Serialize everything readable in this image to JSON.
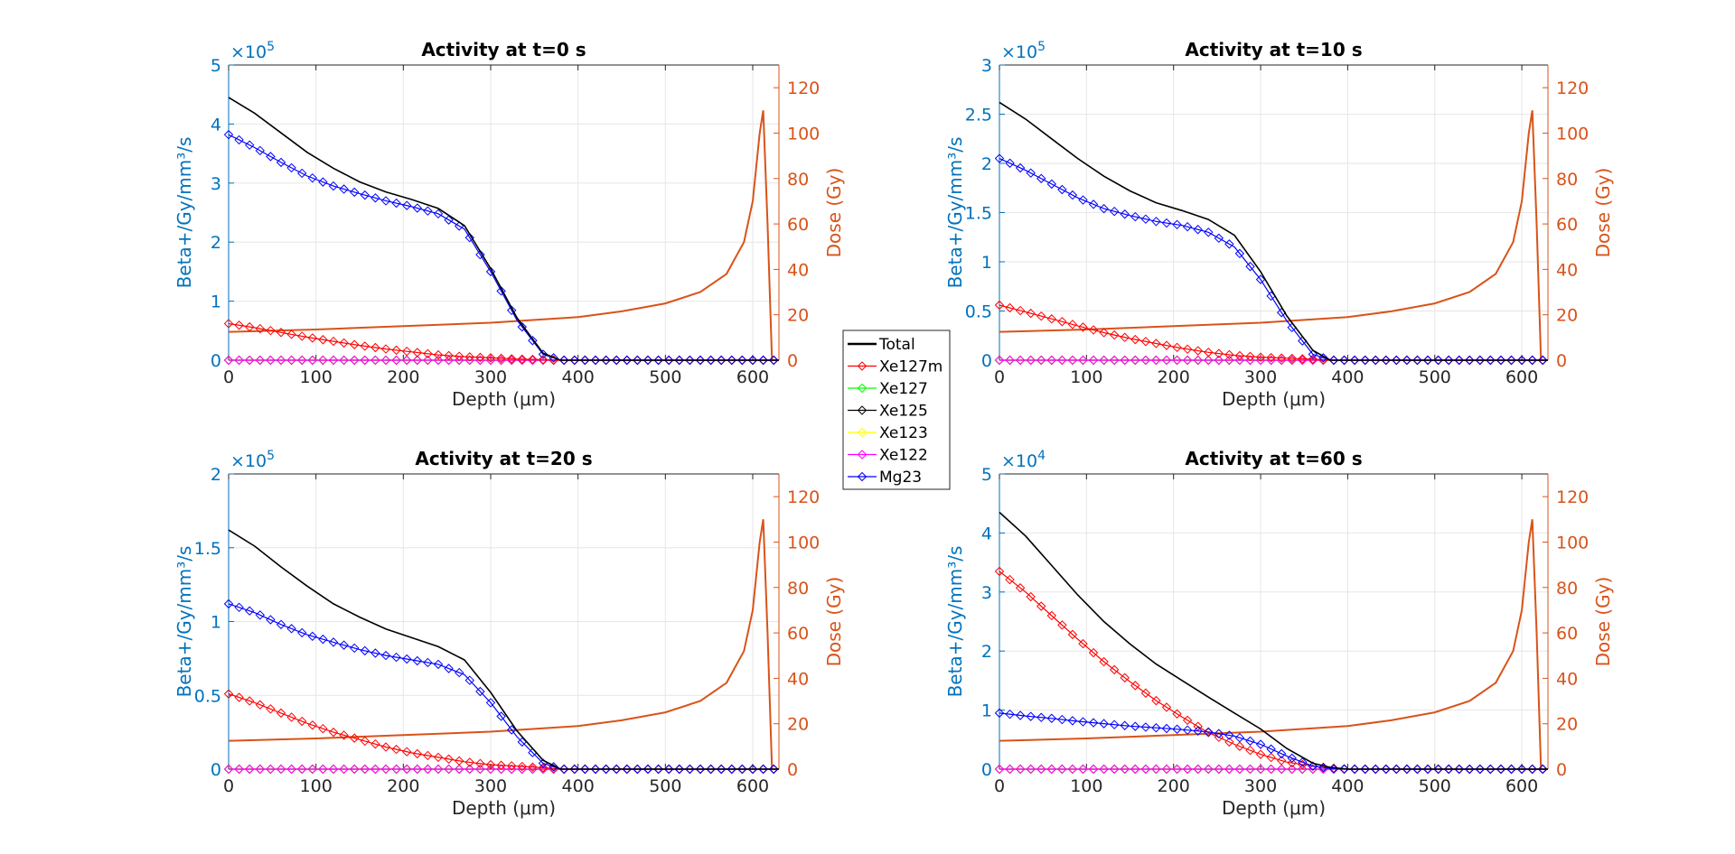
{
  "legend": {
    "entries": [
      {
        "label": "Total",
        "color": "#000000",
        "marker": "none"
      },
      {
        "label": "Xe127m",
        "color": "#ff0000",
        "marker": "diamond"
      },
      {
        "label": "Xe127",
        "color": "#00ff00",
        "marker": "diamond"
      },
      {
        "label": "Xe125",
        "color": "#000000",
        "marker": "diamond"
      },
      {
        "label": "Xe123",
        "color": "#ffff00",
        "marker": "diamond"
      },
      {
        "label": "Xe122",
        "color": "#ff00ff",
        "marker": "diamond"
      },
      {
        "label": "Mg23",
        "color": "#0000ff",
        "marker": "diamond"
      }
    ]
  },
  "colors": {
    "left_axis": "#0072bd",
    "right_axis": "#d95319",
    "grid": "#e6e6e6"
  },
  "chart_data": [
    {
      "type": "line",
      "title": "Activity at t=0 s",
      "xlabel": "Depth (μm)",
      "ylabel_left": "Beta+/Gy/mm³/s",
      "ylabel_right": "Dose (Gy)",
      "xlim": [
        0,
        630
      ],
      "xticks": [
        0,
        100,
        200,
        300,
        400,
        500,
        600
      ],
      "ylim_left": [
        0,
        5
      ],
      "yticks_left": [
        "0",
        "1",
        "2",
        "3",
        "4",
        "5"
      ],
      "ytick_values_left": [
        0,
        1,
        2,
        3,
        4,
        5
      ],
      "multiplier": "×10",
      "multiplier_exp": "5",
      "ylim_right": [
        0,
        130
      ],
      "yticks_right": [
        0,
        20,
        40,
        60,
        80,
        100,
        120
      ],
      "grid": true,
      "x": [
        0,
        30,
        60,
        90,
        120,
        150,
        180,
        210,
        240,
        270,
        300,
        330,
        360,
        380,
        400,
        450,
        500,
        550,
        600,
        630
      ],
      "series": [
        {
          "name": "Total",
          "values": [
            4.45,
            4.18,
            3.85,
            3.52,
            3.25,
            3.02,
            2.85,
            2.72,
            2.57,
            2.28,
            1.55,
            0.72,
            0.12,
            0,
            0,
            0,
            0,
            0,
            0,
            0
          ]
        },
        {
          "name": "Xe127m",
          "values": [
            0.62,
            0.55,
            0.47,
            0.39,
            0.32,
            0.25,
            0.19,
            0.14,
            0.09,
            0.06,
            0.04,
            0.02,
            0.01,
            0,
            0,
            0,
            0,
            0,
            0,
            0
          ]
        },
        {
          "name": "Xe127",
          "values": [
            0,
            0,
            0,
            0,
            0,
            0,
            0,
            0,
            0,
            0,
            0,
            0,
            0,
            0,
            0,
            0,
            0,
            0,
            0,
            0
          ]
        },
        {
          "name": "Xe125",
          "values": [
            0,
            0,
            0,
            0,
            0,
            0,
            0,
            0,
            0,
            0,
            0,
            0,
            0,
            0,
            0,
            0,
            0,
            0,
            0,
            0
          ]
        },
        {
          "name": "Xe123",
          "values": [
            0,
            0,
            0,
            0,
            0,
            0,
            0,
            0,
            0,
            0,
            0,
            0,
            0,
            0,
            0,
            0,
            0,
            0,
            0,
            0
          ]
        },
        {
          "name": "Xe122",
          "values": [
            0,
            0,
            0,
            0,
            0,
            0,
            0,
            0,
            0,
            0,
            0,
            0,
            0,
            0,
            0,
            0,
            0,
            0,
            0,
            0
          ]
        },
        {
          "name": "Mg23",
          "values": [
            3.82,
            3.6,
            3.35,
            3.12,
            2.95,
            2.82,
            2.7,
            2.6,
            2.48,
            2.22,
            1.5,
            0.68,
            0.1,
            0,
            0,
            0,
            0,
            0,
            0,
            0
          ]
        }
      ],
      "dose": {
        "x": [
          0,
          100,
          200,
          300,
          400,
          450,
          500,
          540,
          570,
          590,
          600,
          608,
          612,
          617,
          622
        ],
        "values": [
          12.5,
          13.5,
          15.0,
          16.5,
          19.0,
          21.5,
          25.0,
          30.0,
          38.0,
          52.0,
          70.0,
          100.0,
          110.0,
          60.0,
          0.0
        ]
      }
    },
    {
      "type": "line",
      "title": "Activity at t=10 s",
      "xlabel": "Depth (μm)",
      "ylabel_left": "Beta+/Gy/mm³/s",
      "ylabel_right": "Dose (Gy)",
      "xlim": [
        0,
        630
      ],
      "xticks": [
        0,
        100,
        200,
        300,
        400,
        500,
        600
      ],
      "ylim_left": [
        0,
        3
      ],
      "yticks_left": [
        "0",
        "0.5",
        "1",
        "1.5",
        "2",
        "2.5",
        "3"
      ],
      "ytick_values_left": [
        0,
        0.5,
        1,
        1.5,
        2,
        2.5,
        3
      ],
      "multiplier": "×10",
      "multiplier_exp": "5",
      "ylim_right": [
        0,
        130
      ],
      "yticks_right": [
        0,
        20,
        40,
        60,
        80,
        100,
        120
      ],
      "grid": true,
      "x": [
        0,
        30,
        60,
        90,
        120,
        150,
        180,
        210,
        240,
        270,
        300,
        330,
        360,
        380,
        400,
        450,
        500,
        550,
        600,
        630
      ],
      "series": [
        {
          "name": "Total",
          "values": [
            2.62,
            2.45,
            2.25,
            2.05,
            1.87,
            1.72,
            1.6,
            1.52,
            1.43,
            1.27,
            0.9,
            0.45,
            0.1,
            0,
            0,
            0,
            0,
            0,
            0,
            0
          ]
        },
        {
          "name": "Xe127m",
          "values": [
            0.56,
            0.49,
            0.42,
            0.35,
            0.28,
            0.22,
            0.17,
            0.12,
            0.08,
            0.05,
            0.03,
            0.02,
            0.01,
            0,
            0,
            0,
            0,
            0,
            0,
            0
          ]
        },
        {
          "name": "Xe127",
          "values": [
            0,
            0,
            0,
            0,
            0,
            0,
            0,
            0,
            0,
            0,
            0,
            0,
            0,
            0,
            0,
            0,
            0,
            0,
            0,
            0
          ]
        },
        {
          "name": "Xe125",
          "values": [
            0,
            0,
            0,
            0,
            0,
            0,
            0,
            0,
            0,
            0,
            0,
            0,
            0,
            0,
            0,
            0,
            0,
            0,
            0,
            0
          ]
        },
        {
          "name": "Xe123",
          "values": [
            0,
            0,
            0,
            0,
            0,
            0,
            0,
            0,
            0,
            0,
            0,
            0,
            0,
            0,
            0,
            0,
            0,
            0,
            0,
            0
          ]
        },
        {
          "name": "Xe122",
          "values": [
            0,
            0,
            0,
            0,
            0,
            0,
            0,
            0,
            0,
            0,
            0,
            0,
            0,
            0,
            0,
            0,
            0,
            0,
            0,
            0
          ]
        },
        {
          "name": "Mg23",
          "values": [
            2.05,
            1.93,
            1.79,
            1.65,
            1.54,
            1.47,
            1.41,
            1.37,
            1.3,
            1.15,
            0.82,
            0.4,
            0.06,
            0,
            0,
            0,
            0,
            0,
            0,
            0
          ]
        }
      ],
      "dose": {
        "x": [
          0,
          100,
          200,
          300,
          400,
          450,
          500,
          540,
          570,
          590,
          600,
          608,
          612,
          617,
          622
        ],
        "values": [
          12.5,
          13.5,
          15.0,
          16.5,
          19.0,
          21.5,
          25.0,
          30.0,
          38.0,
          52.0,
          70.0,
          100.0,
          110.0,
          60.0,
          0.0
        ]
      }
    },
    {
      "type": "line",
      "title": "Activity at t=20 s",
      "xlabel": "Depth (μm)",
      "ylabel_left": "Beta+/Gy/mm³/s",
      "ylabel_right": "Dose (Gy)",
      "xlim": [
        0,
        630
      ],
      "xticks": [
        0,
        100,
        200,
        300,
        400,
        500,
        600
      ],
      "ylim_left": [
        0,
        2
      ],
      "yticks_left": [
        "0",
        "0.5",
        "1",
        "1.5",
        "2"
      ],
      "ytick_values_left": [
        0,
        0.5,
        1,
        1.5,
        2
      ],
      "multiplier": "×10",
      "multiplier_exp": "5",
      "ylim_right": [
        0,
        130
      ],
      "yticks_right": [
        0,
        20,
        40,
        60,
        80,
        100,
        120
      ],
      "grid": true,
      "x": [
        0,
        30,
        60,
        90,
        120,
        150,
        180,
        210,
        240,
        270,
        300,
        330,
        360,
        380,
        400,
        450,
        500,
        550,
        600,
        630
      ],
      "series": [
        {
          "name": "Total",
          "values": [
            1.62,
            1.51,
            1.37,
            1.24,
            1.12,
            1.03,
            0.95,
            0.89,
            0.83,
            0.74,
            0.52,
            0.26,
            0.06,
            0,
            0,
            0,
            0,
            0,
            0,
            0
          ]
        },
        {
          "name": "Xe127m",
          "values": [
            0.51,
            0.45,
            0.38,
            0.31,
            0.25,
            0.2,
            0.15,
            0.11,
            0.08,
            0.05,
            0.03,
            0.02,
            0.01,
            0,
            0,
            0,
            0,
            0,
            0,
            0
          ]
        },
        {
          "name": "Xe127",
          "values": [
            0,
            0,
            0,
            0,
            0,
            0,
            0,
            0,
            0,
            0,
            0,
            0,
            0,
            0,
            0,
            0,
            0,
            0,
            0,
            0
          ]
        },
        {
          "name": "Xe125",
          "values": [
            0,
            0,
            0,
            0,
            0,
            0,
            0,
            0,
            0,
            0,
            0,
            0,
            0,
            0,
            0,
            0,
            0,
            0,
            0,
            0
          ]
        },
        {
          "name": "Xe123",
          "values": [
            0,
            0,
            0,
            0,
            0,
            0,
            0,
            0,
            0,
            0,
            0,
            0,
            0,
            0,
            0,
            0,
            0,
            0,
            0,
            0
          ]
        },
        {
          "name": "Xe122",
          "values": [
            0,
            0,
            0,
            0,
            0,
            0,
            0,
            0,
            0,
            0,
            0,
            0,
            0,
            0,
            0,
            0,
            0,
            0,
            0,
            0
          ]
        },
        {
          "name": "Mg23",
          "values": [
            1.12,
            1.06,
            0.98,
            0.91,
            0.86,
            0.81,
            0.77,
            0.74,
            0.71,
            0.64,
            0.45,
            0.22,
            0.04,
            0,
            0,
            0,
            0,
            0,
            0,
            0
          ]
        }
      ],
      "dose": {
        "x": [
          0,
          100,
          200,
          300,
          400,
          450,
          500,
          540,
          570,
          590,
          600,
          608,
          612,
          617,
          622
        ],
        "values": [
          12.5,
          13.5,
          15.0,
          16.5,
          19.0,
          21.5,
          25.0,
          30.0,
          38.0,
          52.0,
          70.0,
          100.0,
          110.0,
          60.0,
          0.0
        ]
      }
    },
    {
      "type": "line",
      "title": "Activity at t=60 s",
      "xlabel": "Depth (μm)",
      "ylabel_left": "Beta+/Gy/mm³/s",
      "ylabel_right": "Dose (Gy)",
      "xlim": [
        0,
        630
      ],
      "xticks": [
        0,
        100,
        200,
        300,
        400,
        500,
        600
      ],
      "ylim_left": [
        0,
        5
      ],
      "yticks_left": [
        "0",
        "1",
        "2",
        "3",
        "4",
        "5"
      ],
      "ytick_values_left": [
        0,
        1,
        2,
        3,
        4,
        5
      ],
      "multiplier": "×10",
      "multiplier_exp": "4",
      "ylim_right": [
        0,
        130
      ],
      "yticks_right": [
        0,
        20,
        40,
        60,
        80,
        100,
        120
      ],
      "grid": true,
      "x": [
        0,
        30,
        60,
        90,
        120,
        150,
        180,
        210,
        240,
        270,
        300,
        330,
        360,
        380,
        400,
        450,
        500,
        550,
        600,
        630
      ],
      "series": [
        {
          "name": "Total",
          "values": [
            4.35,
            3.95,
            3.45,
            2.95,
            2.5,
            2.12,
            1.78,
            1.5,
            1.22,
            0.95,
            0.68,
            0.35,
            0.1,
            0.03,
            0,
            0,
            0,
            0,
            0,
            0
          ]
        },
        {
          "name": "Xe127m",
          "values": [
            3.35,
            3.0,
            2.6,
            2.2,
            1.82,
            1.48,
            1.16,
            0.88,
            0.62,
            0.42,
            0.25,
            0.12,
            0.05,
            0.02,
            0,
            0,
            0,
            0,
            0,
            0
          ]
        },
        {
          "name": "Xe127",
          "values": [
            0,
            0,
            0,
            0,
            0,
            0,
            0,
            0,
            0,
            0,
            0,
            0,
            0,
            0,
            0,
            0,
            0,
            0,
            0,
            0
          ]
        },
        {
          "name": "Xe125",
          "values": [
            0,
            0,
            0,
            0,
            0,
            0,
            0,
            0,
            0,
            0,
            0,
            0,
            0,
            0,
            0,
            0,
            0,
            0,
            0,
            0
          ]
        },
        {
          "name": "Xe123",
          "values": [
            0,
            0,
            0,
            0,
            0,
            0,
            0,
            0,
            0,
            0,
            0,
            0,
            0,
            0,
            0,
            0,
            0,
            0,
            0,
            0
          ]
        },
        {
          "name": "Xe122",
          "values": [
            0,
            0,
            0,
            0,
            0,
            0,
            0,
            0,
            0,
            0,
            0,
            0,
            0,
            0,
            0,
            0,
            0,
            0,
            0,
            0
          ]
        },
        {
          "name": "Mg23",
          "values": [
            0.95,
            0.9,
            0.86,
            0.81,
            0.77,
            0.73,
            0.7,
            0.67,
            0.63,
            0.56,
            0.42,
            0.22,
            0.05,
            0.01,
            0,
            0,
            0,
            0,
            0,
            0
          ]
        }
      ],
      "dose": {
        "x": [
          0,
          100,
          200,
          300,
          400,
          450,
          500,
          540,
          570,
          590,
          600,
          608,
          612,
          617,
          622
        ],
        "values": [
          12.5,
          13.5,
          15.0,
          16.5,
          19.0,
          21.5,
          25.0,
          30.0,
          38.0,
          52.0,
          70.0,
          100.0,
          110.0,
          60.0,
          0.0
        ]
      }
    }
  ]
}
